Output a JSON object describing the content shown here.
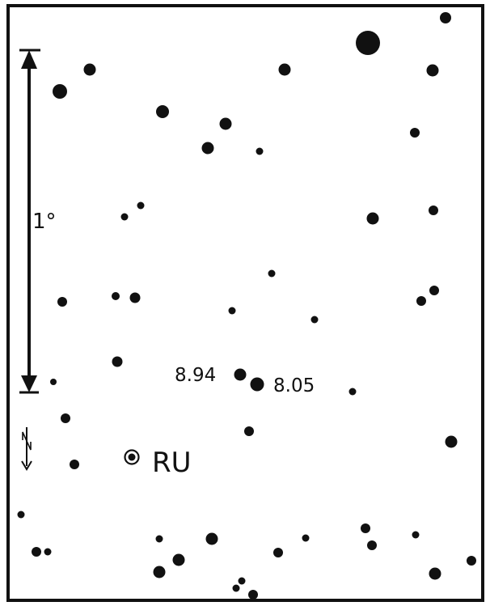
{
  "scale_label": "1°",
  "labels": {
    "comp1": "8.94",
    "comp2": "8.05",
    "variable": "RU"
  },
  "colors": {
    "ink": "#111111",
    "paper": "#ffffff"
  },
  "icons": {
    "orientation": "north-arrow-icon",
    "variable": "variable-star-marker-icon"
  }
}
